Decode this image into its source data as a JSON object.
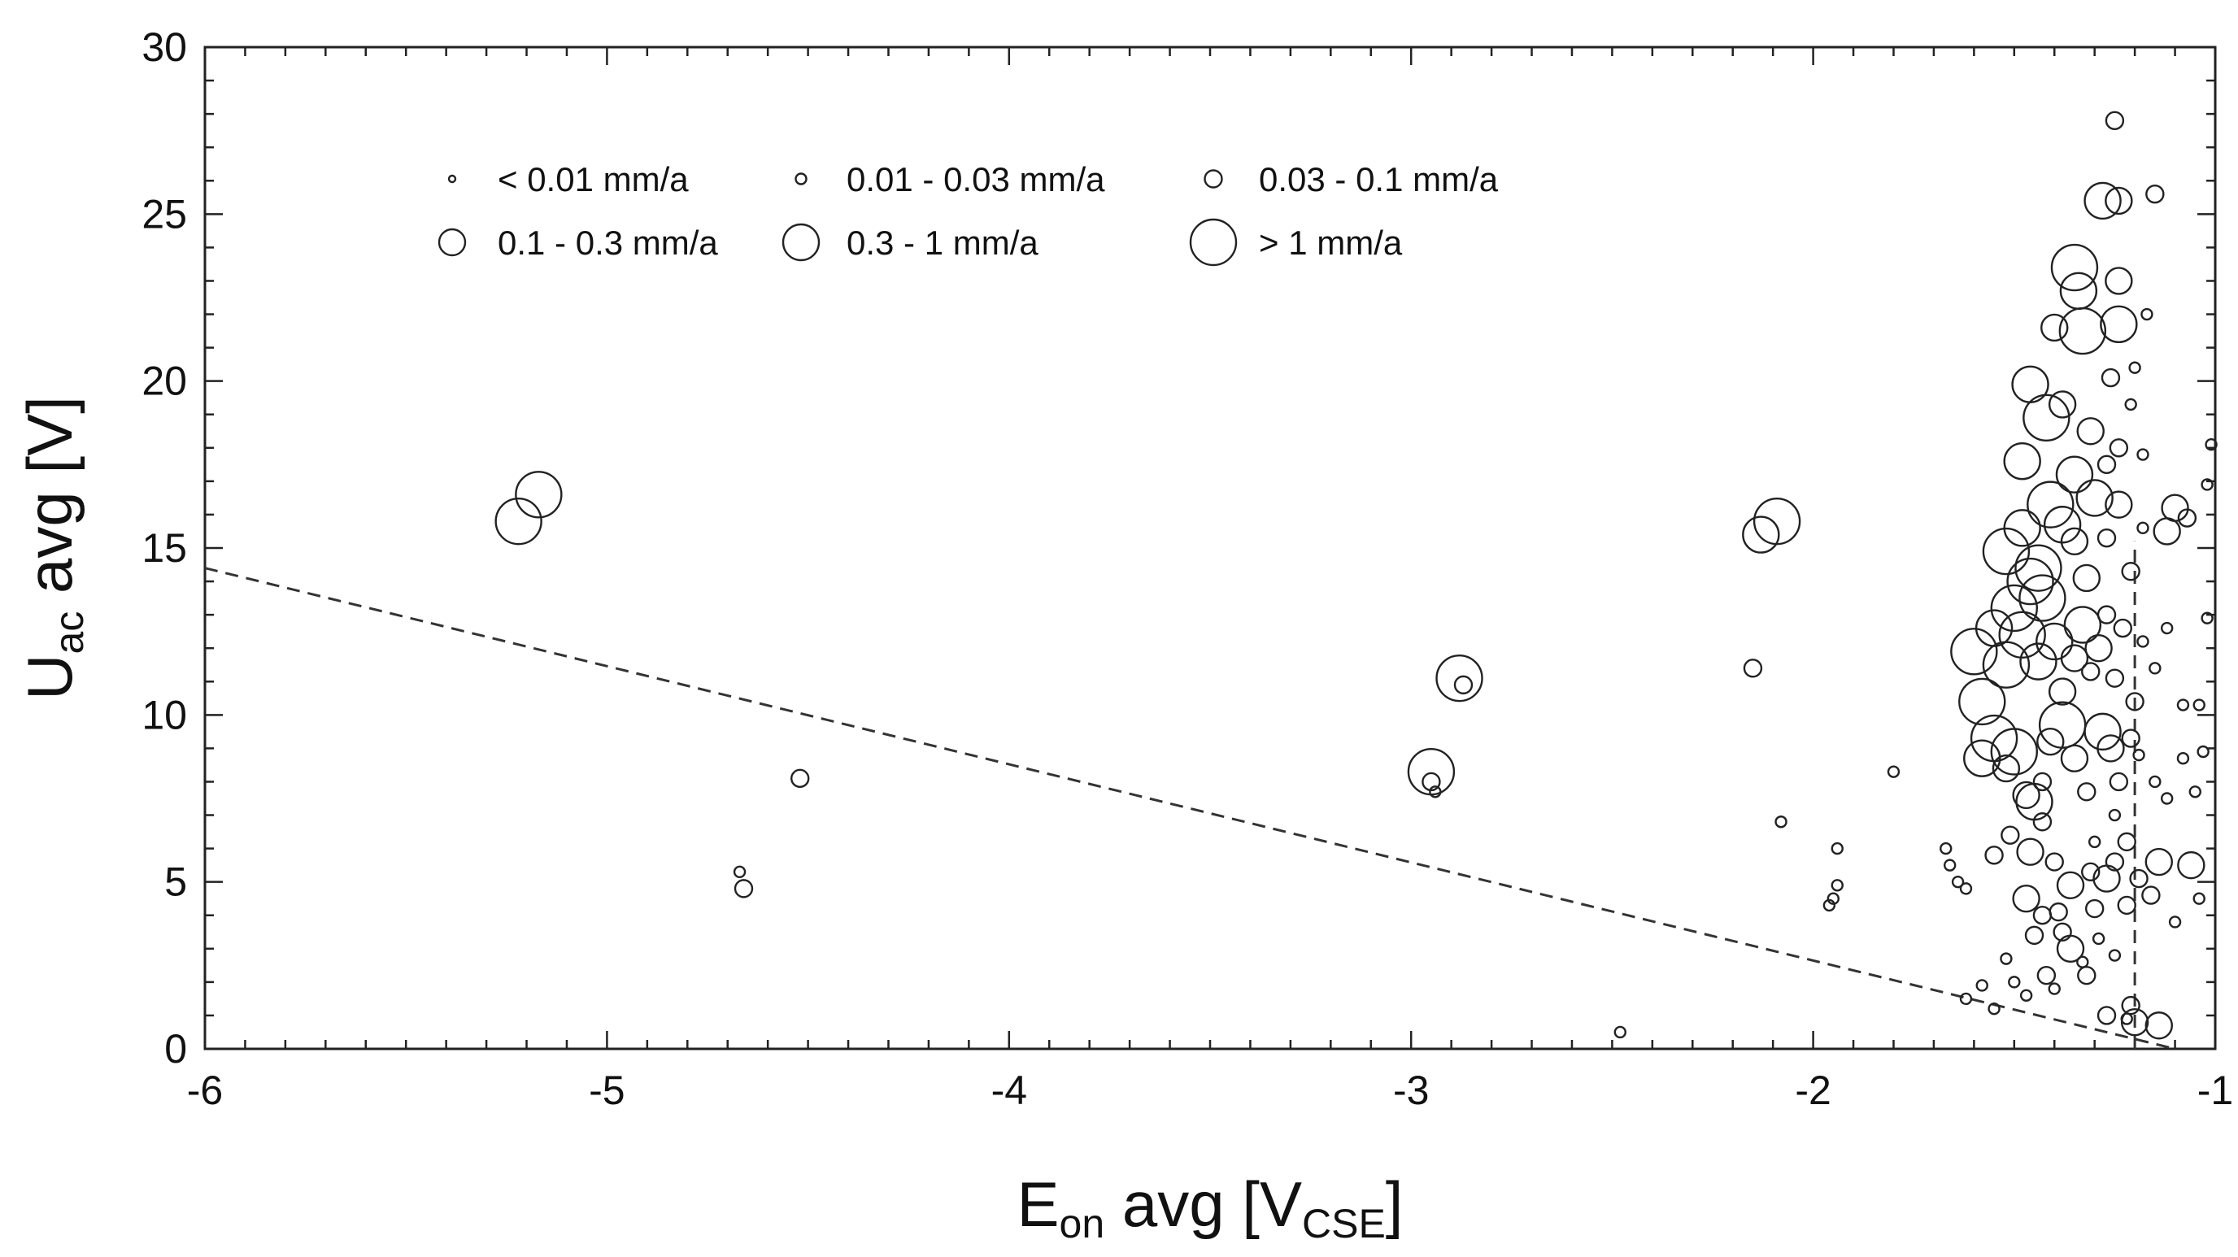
{
  "chart_data": {
    "type": "scatter",
    "title": "",
    "xlabel": {
      "main": "E",
      "sub": "on",
      "rest": " avg [V",
      "sub2": "CSE",
      "close": "]"
    },
    "ylabel": {
      "main": "U",
      "sub": "ac",
      "rest": " avg [V]"
    },
    "xlim": [
      -6,
      -1
    ],
    "ylim": [
      0,
      30
    ],
    "xticks": [
      {
        "v": -6,
        "label": "-6"
      },
      {
        "v": -5,
        "label": "-5"
      },
      {
        "v": -4,
        "label": "-4"
      },
      {
        "v": -3,
        "label": "-3"
      },
      {
        "v": -2,
        "label": "-2"
      },
      {
        "v": -1,
        "label": "-1"
      }
    ],
    "yticks": [
      {
        "v": 0,
        "label": "0"
      },
      {
        "v": 5,
        "label": "5"
      },
      {
        "v": 10,
        "label": "10"
      },
      {
        "v": 15,
        "label": "15"
      },
      {
        "v": 20,
        "label": "20"
      },
      {
        "v": 25,
        "label": "25"
      },
      {
        "v": 30,
        "label": "30"
      }
    ],
    "grid": false,
    "legend_position": "top-left",
    "legend": [
      {
        "label": "< 0.01 mm/a",
        "cls": 0
      },
      {
        "label": "0.01 - 0.03 mm/a",
        "cls": 1
      },
      {
        "label": "0.03 - 0.1 mm/a",
        "cls": 2
      },
      {
        "label": "0.1 - 0.3 mm/a",
        "cls": 3
      },
      {
        "label": "0.3 - 1 mm/a",
        "cls": 4
      },
      {
        "label": "> 1 mm/a",
        "cls": 5
      }
    ],
    "reference_lines": [
      {
        "style": "dashed",
        "x": [
          -6.0,
          -1.1
        ],
        "y": [
          14.4,
          0.0
        ]
      },
      {
        "style": "dashed",
        "x": [
          -1.2,
          -1.2
        ],
        "y": [
          0.0,
          15.2
        ]
      }
    ],
    "points": [
      [
        -5.22,
        15.8,
        5
      ],
      [
        -5.17,
        16.6,
        5
      ],
      [
        -4.67,
        5.3,
        1
      ],
      [
        -4.66,
        4.8,
        2
      ],
      [
        -4.52,
        8.1,
        2
      ],
      [
        -2.95,
        8.3,
        5
      ],
      [
        -2.95,
        8.0,
        2
      ],
      [
        -2.94,
        7.7,
        1
      ],
      [
        -2.88,
        11.1,
        5
      ],
      [
        -2.87,
        10.9,
        2
      ],
      [
        -2.48,
        0.5,
        1
      ],
      [
        -2.13,
        15.4,
        4
      ],
      [
        -2.09,
        15.8,
        5
      ],
      [
        -2.15,
        11.4,
        2
      ],
      [
        -2.08,
        6.8,
        1
      ],
      [
        -1.96,
        4.3,
        1
      ],
      [
        -1.95,
        4.5,
        1
      ],
      [
        -1.94,
        4.9,
        1
      ],
      [
        -1.94,
        6.0,
        1
      ],
      [
        -1.8,
        8.3,
        1
      ],
      [
        -1.67,
        6.0,
        1
      ],
      [
        -1.66,
        5.5,
        1
      ],
      [
        -1.64,
        5.0,
        1
      ],
      [
        -1.62,
        4.8,
        1
      ],
      [
        -1.62,
        1.5,
        1
      ],
      [
        -1.58,
        1.9,
        1
      ],
      [
        -1.55,
        1.2,
        1
      ],
      [
        -1.52,
        2.7,
        1
      ],
      [
        -1.5,
        2.0,
        1
      ],
      [
        -1.47,
        1.6,
        1
      ],
      [
        -1.45,
        3.4,
        2
      ],
      [
        -1.42,
        2.2,
        2
      ],
      [
        -1.4,
        1.8,
        1
      ],
      [
        -1.38,
        3.5,
        2
      ],
      [
        -1.36,
        3.0,
        3
      ],
      [
        -1.33,
        2.6,
        1
      ],
      [
        -1.32,
        2.2,
        2
      ],
      [
        -1.29,
        3.3,
        1
      ],
      [
        -1.27,
        1.0,
        2
      ],
      [
        -1.25,
        2.8,
        1
      ],
      [
        -1.22,
        0.9,
        1
      ],
      [
        -1.21,
        1.3,
        2
      ],
      [
        -1.2,
        0.8,
        3
      ],
      [
        -1.14,
        0.7,
        3
      ],
      [
        -1.47,
        4.5,
        3
      ],
      [
        -1.43,
        4.0,
        2
      ],
      [
        -1.39,
        4.1,
        2
      ],
      [
        -1.36,
        4.9,
        3
      ],
      [
        -1.31,
        5.3,
        2
      ],
      [
        -1.3,
        4.2,
        2
      ],
      [
        -1.27,
        5.1,
        3
      ],
      [
        -1.25,
        5.6,
        2
      ],
      [
        -1.22,
        4.3,
        2
      ],
      [
        -1.19,
        5.1,
        2
      ],
      [
        -1.16,
        4.6,
        2
      ],
      [
        -1.1,
        3.8,
        1
      ],
      [
        -1.55,
        5.8,
        2
      ],
      [
        -1.51,
        6.4,
        2
      ],
      [
        -1.46,
        5.9,
        3
      ],
      [
        -1.43,
        6.8,
        2
      ],
      [
        -1.4,
        5.6,
        2
      ],
      [
        -1.3,
        6.2,
        1
      ],
      [
        -1.25,
        7.0,
        1
      ],
      [
        -1.22,
        6.2,
        2
      ],
      [
        -1.14,
        5.6,
        3
      ],
      [
        -1.06,
        5.5,
        3
      ],
      [
        -1.04,
        4.5,
        1
      ],
      [
        -1.58,
        8.7,
        4
      ],
      [
        -1.55,
        9.3,
        5
      ],
      [
        -1.52,
        8.4,
        3
      ],
      [
        -1.5,
        8.9,
        5
      ],
      [
        -1.47,
        7.6,
        3
      ],
      [
        -1.45,
        7.4,
        4
      ],
      [
        -1.43,
        8.0,
        2
      ],
      [
        -1.41,
        9.2,
        3
      ],
      [
        -1.38,
        9.7,
        5
      ],
      [
        -1.35,
        8.7,
        3
      ],
      [
        -1.32,
        7.7,
        2
      ],
      [
        -1.28,
        9.5,
        4
      ],
      [
        -1.26,
        9.0,
        3
      ],
      [
        -1.24,
        8.0,
        2
      ],
      [
        -1.21,
        9.3,
        2
      ],
      [
        -1.19,
        8.8,
        1
      ],
      [
        -1.15,
        8.0,
        1
      ],
      [
        -1.12,
        7.5,
        1
      ],
      [
        -1.08,
        8.7,
        1
      ],
      [
        -1.05,
        7.7,
        1
      ],
      [
        -1.03,
        8.9,
        1
      ],
      [
        -1.6,
        11.9,
        5
      ],
      [
        -1.58,
        10.4,
        5
      ],
      [
        -1.55,
        12.6,
        4
      ],
      [
        -1.52,
        11.5,
        5
      ],
      [
        -1.5,
        13.2,
        5
      ],
      [
        -1.48,
        12.4,
        5
      ],
      [
        -1.46,
        14.0,
        5
      ],
      [
        -1.44,
        11.6,
        4
      ],
      [
        -1.43,
        13.5,
        5
      ],
      [
        -1.4,
        12.2,
        4
      ],
      [
        -1.38,
        10.7,
        3
      ],
      [
        -1.35,
        11.7,
        3
      ],
      [
        -1.33,
        12.7,
        4
      ],
      [
        -1.31,
        11.3,
        2
      ],
      [
        -1.29,
        12.0,
        3
      ],
      [
        -1.27,
        13.0,
        2
      ],
      [
        -1.25,
        11.1,
        2
      ],
      [
        -1.23,
        12.6,
        2
      ],
      [
        -1.2,
        10.4,
        2
      ],
      [
        -1.18,
        12.2,
        1
      ],
      [
        -1.15,
        11.4,
        1
      ],
      [
        -1.12,
        12.6,
        1
      ],
      [
        -1.08,
        10.3,
        1
      ],
      [
        -1.04,
        10.3,
        1
      ],
      [
        -1.02,
        12.9,
        1
      ],
      [
        -1.52,
        14.9,
        5
      ],
      [
        -1.48,
        15.6,
        4
      ],
      [
        -1.44,
        14.4,
        5
      ],
      [
        -1.41,
        16.3,
        5
      ],
      [
        -1.38,
        15.7,
        4
      ],
      [
        -1.35,
        15.2,
        3
      ],
      [
        -1.32,
        14.1,
        3
      ],
      [
        -1.3,
        16.5,
        4
      ],
      [
        -1.27,
        15.3,
        2
      ],
      [
        -1.24,
        16.3,
        3
      ],
      [
        -1.21,
        14.3,
        2
      ],
      [
        -1.18,
        15.6,
        1
      ],
      [
        -1.12,
        15.5,
        3
      ],
      [
        -1.1,
        16.2,
        3
      ],
      [
        -1.07,
        15.9,
        2
      ],
      [
        -1.02,
        16.9,
        1
      ],
      [
        -1.01,
        18.1,
        1
      ],
      [
        -1.48,
        17.6,
        4
      ],
      [
        -1.42,
        18.9,
        5
      ],
      [
        -1.38,
        19.3,
        3
      ],
      [
        -1.35,
        17.2,
        4
      ],
      [
        -1.31,
        18.5,
        3
      ],
      [
        -1.27,
        17.5,
        2
      ],
      [
        -1.24,
        18.0,
        2
      ],
      [
        -1.21,
        19.3,
        1
      ],
      [
        -1.18,
        17.8,
        1
      ],
      [
        -1.46,
        19.9,
        4
      ],
      [
        -1.4,
        21.6,
        3
      ],
      [
        -1.34,
        22.7,
        4
      ],
      [
        -1.33,
        21.5,
        5
      ],
      [
        -1.26,
        20.1,
        2
      ],
      [
        -1.24,
        21.7,
        4
      ],
      [
        -1.2,
        20.4,
        1
      ],
      [
        -1.35,
        23.4,
        5
      ],
      [
        -1.24,
        23.0,
        3
      ],
      [
        -1.17,
        22.0,
        1
      ],
      [
        -1.28,
        25.4,
        4
      ],
      [
        -1.24,
        25.4,
        3
      ],
      [
        -1.15,
        25.6,
        2
      ],
      [
        -1.25,
        27.8,
        2
      ]
    ]
  }
}
